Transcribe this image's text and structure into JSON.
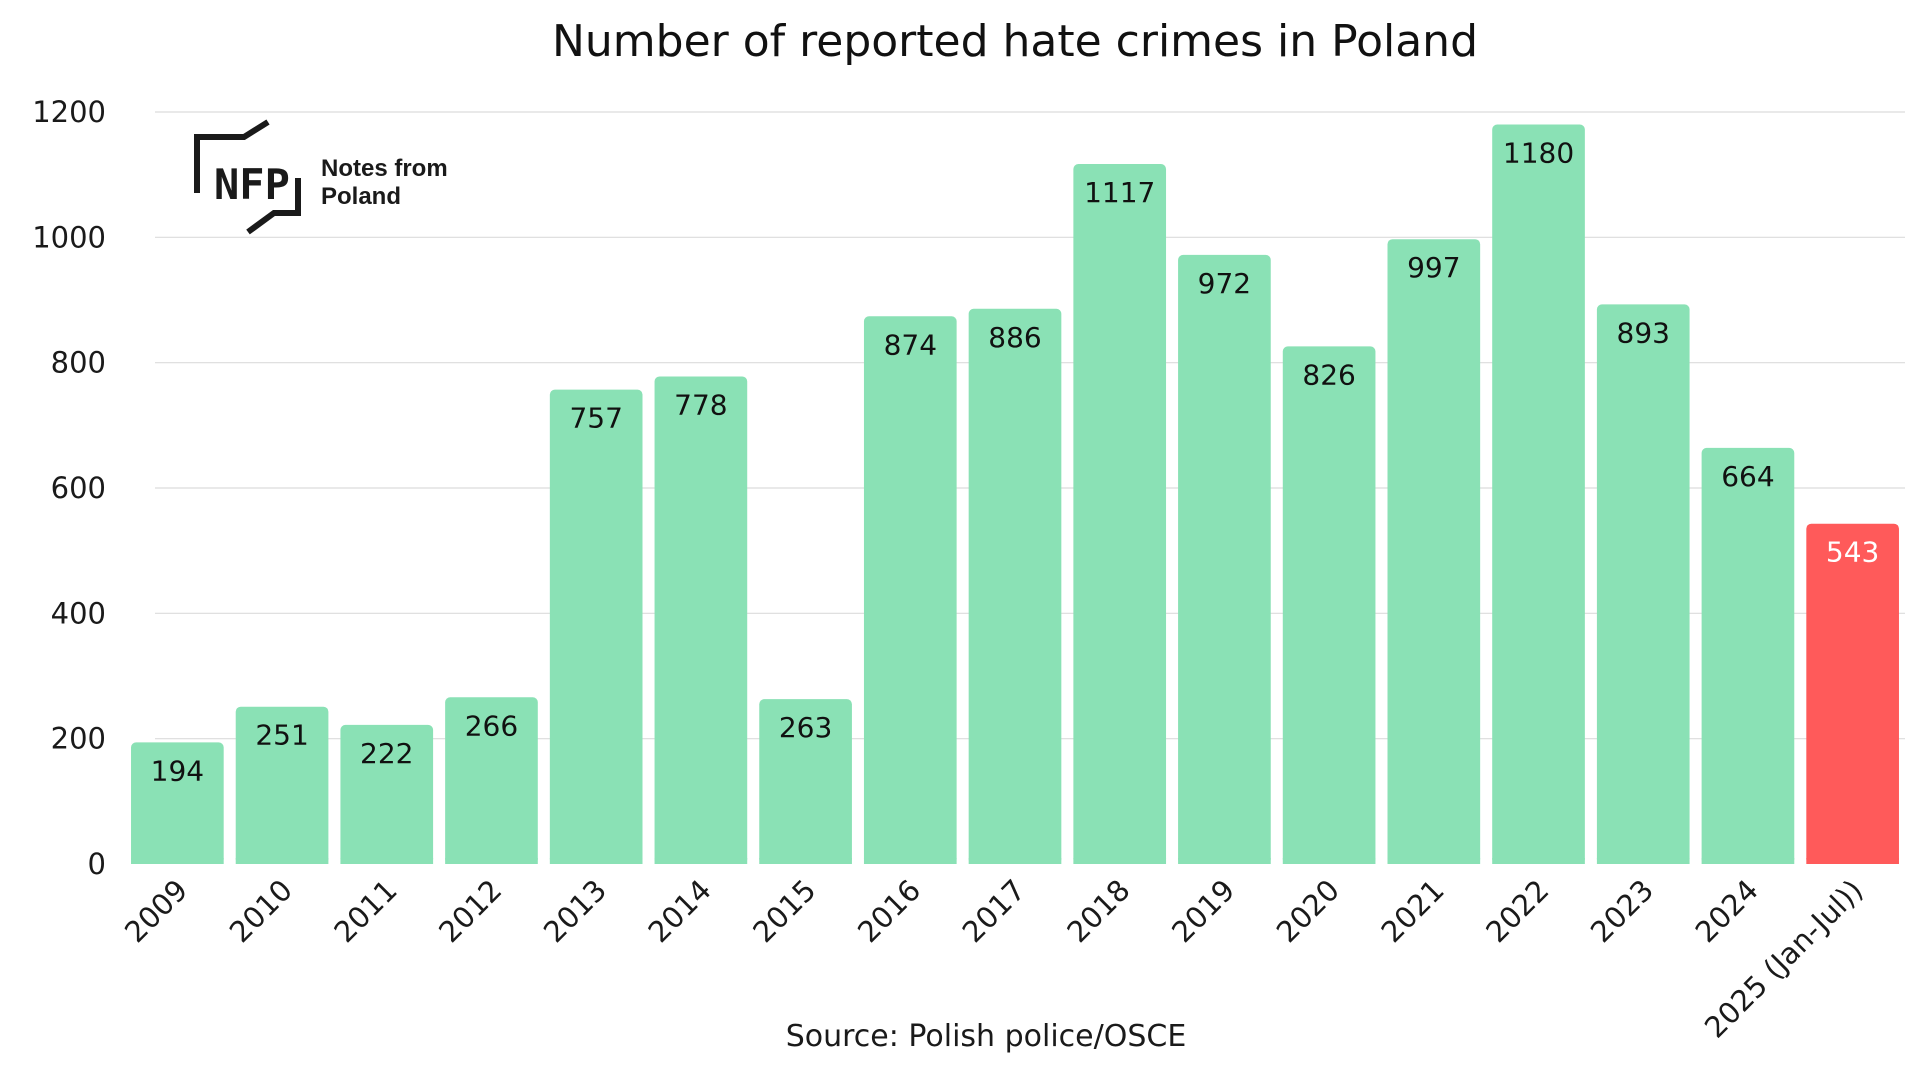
{
  "chart_data": {
    "type": "bar",
    "title": "Number of reported hate crimes in Poland",
    "categories": [
      "2009",
      "2010",
      "2011",
      "2012",
      "2013",
      "2014",
      "2015",
      "2016",
      "2017",
      "2018",
      "2019",
      "2020",
      "2021",
      "2022",
      "2023",
      "2024",
      "2025 (Jan-Jul))"
    ],
    "values": [
      194,
      251,
      222,
      266,
      757,
      778,
      263,
      874,
      886,
      1117,
      972,
      826,
      997,
      1180,
      893,
      664,
      543
    ],
    "highlight_index": 16,
    "ylim": [
      0,
      1200
    ],
    "yticks": [
      0,
      200,
      400,
      600,
      800,
      1000,
      1200
    ],
    "xlabel": "",
    "ylabel": "",
    "grid": true,
    "source": "Source: Polish police/OSCE",
    "colors": {
      "bar": "#8ae1b5",
      "highlight": "#ff5a5a",
      "label_dark": "#111111",
      "label_light": "#ffffff"
    }
  },
  "logo": {
    "abbrev": "NFP",
    "line1": "Notes from",
    "line2": "Poland"
  }
}
